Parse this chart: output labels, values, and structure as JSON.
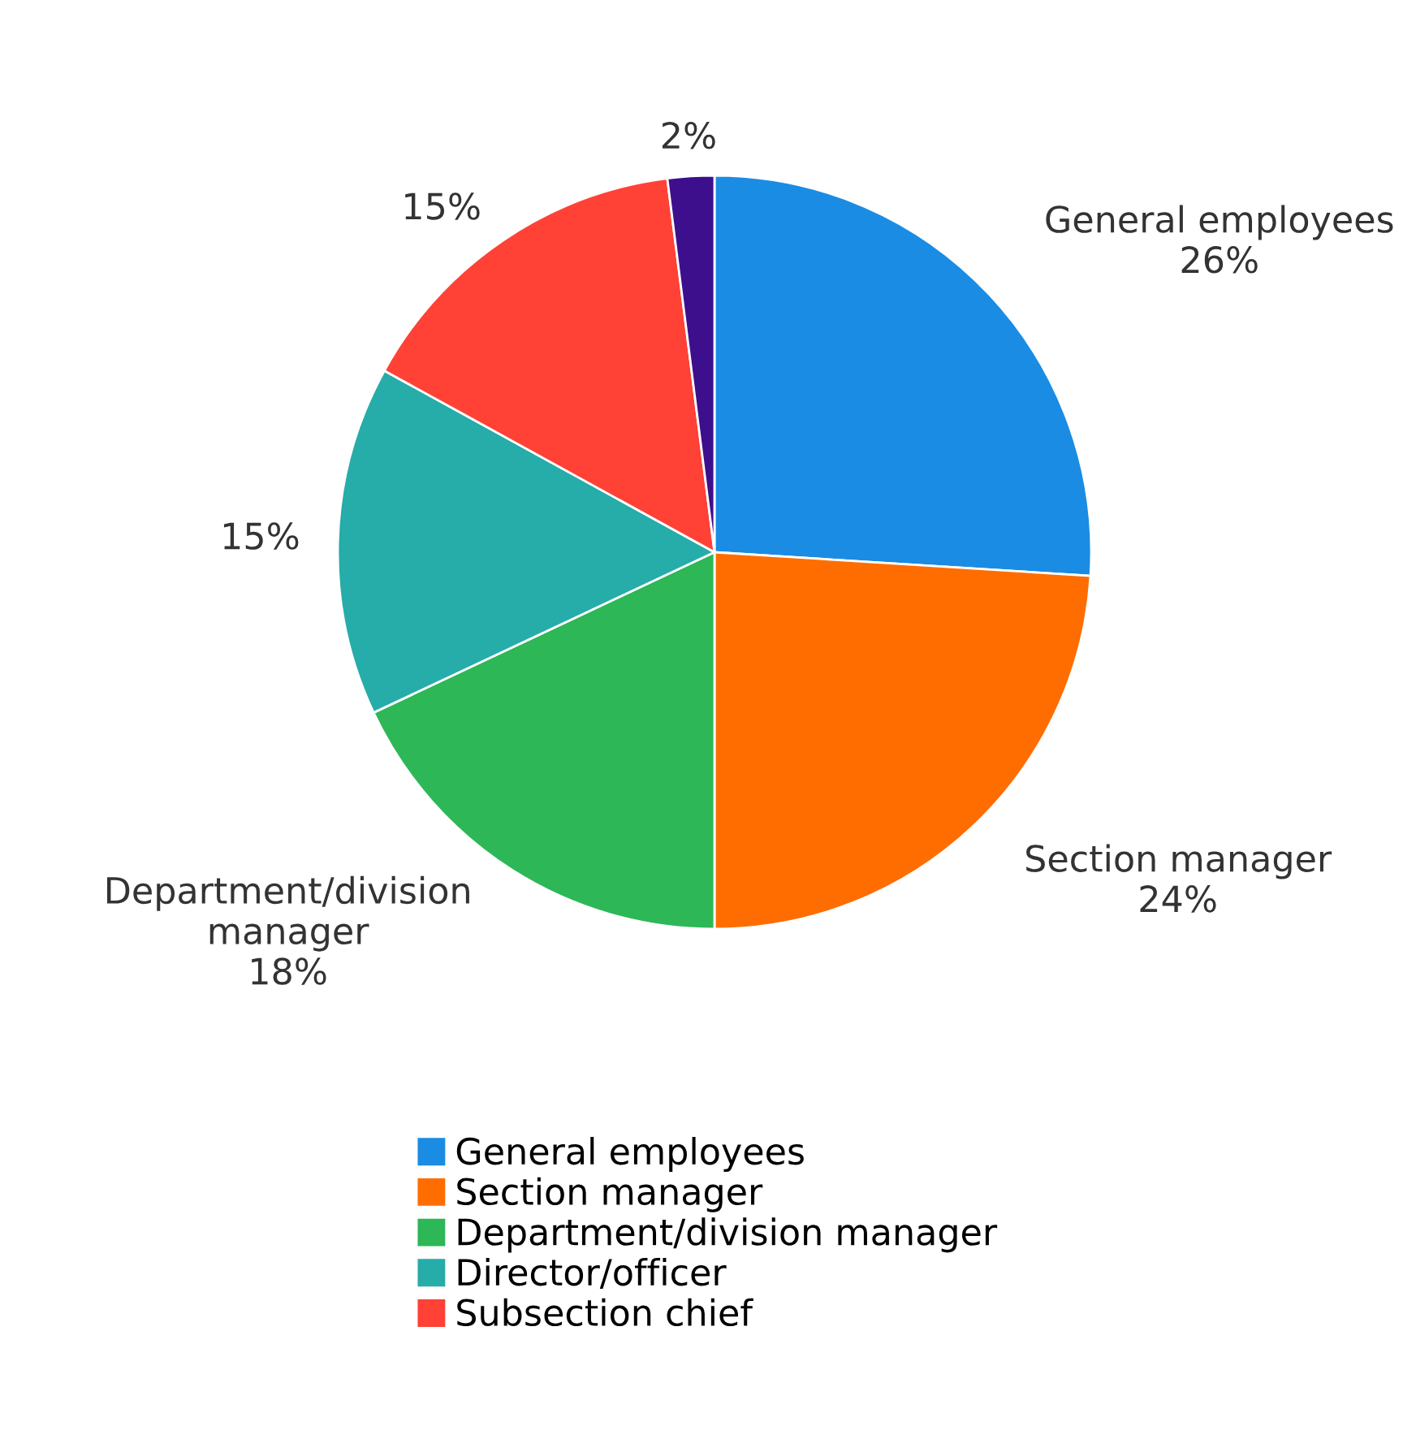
{
  "chart_data": {
    "type": "pie",
    "categories": [
      "General employees",
      "Section manager",
      "Department/division manager",
      "Director/officer",
      "Subsection chief",
      null
    ],
    "values": [
      26,
      24,
      18,
      15,
      15,
      2
    ],
    "colors": [
      "#1a8ce4",
      "#ff6d00",
      "#2db757",
      "#26aca9",
      "#ff4136",
      "#3d0f8c"
    ],
    "value_labels": [
      "26%",
      "24%",
      "18%",
      "15%",
      "15%",
      "2%"
    ],
    "annotations": [
      {
        "text": "General employees",
        "x": "General employees"
      },
      {
        "text": "Section manager",
        "x": "Section manager"
      },
      {
        "text": "Department/division manager",
        "x": "Department/division manager"
      }
    ],
    "legend": "bottom"
  }
}
